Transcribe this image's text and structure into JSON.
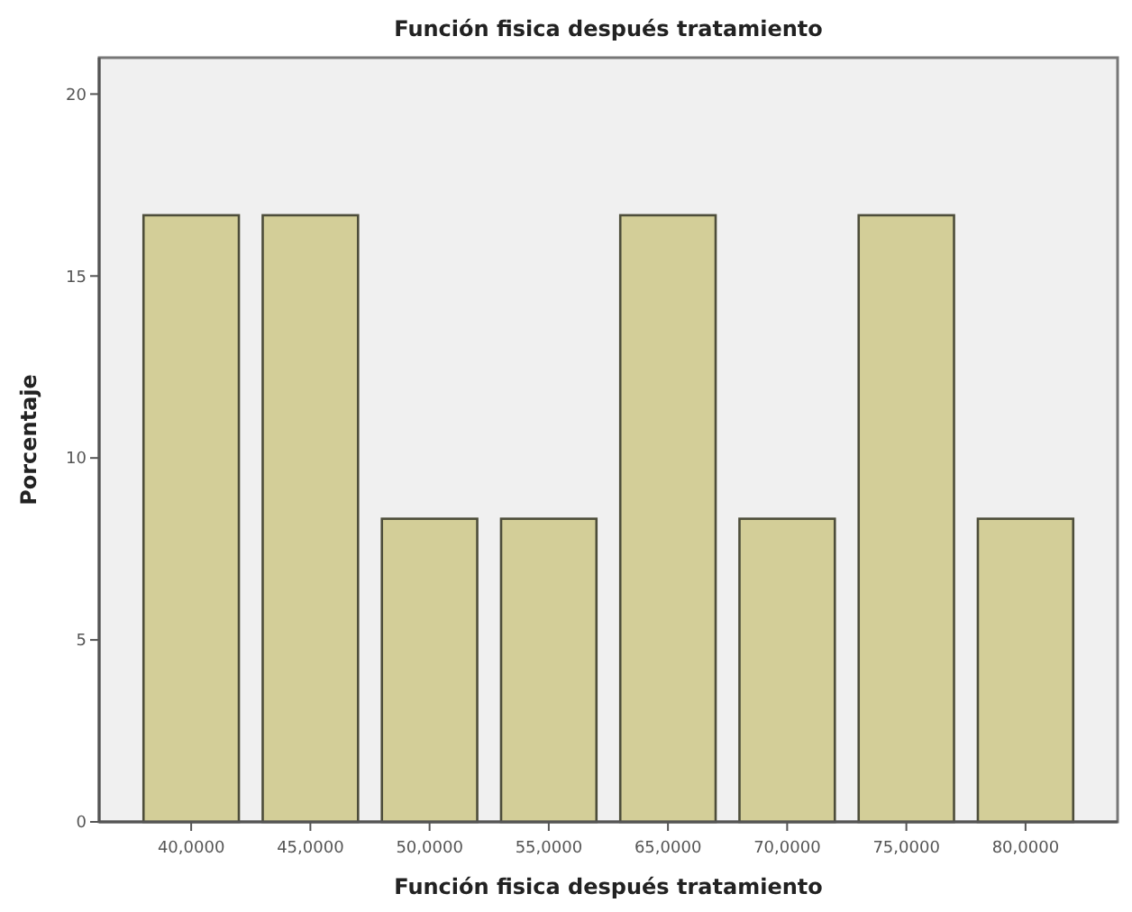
{
  "chart_data": {
    "type": "bar",
    "title": "Función fisica después tratamiento",
    "xlabel": "Función fisica después tratamiento",
    "ylabel": "Porcentaje",
    "categories": [
      "40,0000",
      "45,0000",
      "50,0000",
      "55,0000",
      "65,0000",
      "70,0000",
      "75,0000",
      "80,0000"
    ],
    "values": [
      16.67,
      16.67,
      8.33,
      8.33,
      16.67,
      8.33,
      16.67,
      8.33
    ],
    "color": "#d3ce98",
    "ylim": [
      0,
      21
    ],
    "yticks": [
      0,
      5,
      10,
      15,
      20
    ],
    "grid": false
  }
}
